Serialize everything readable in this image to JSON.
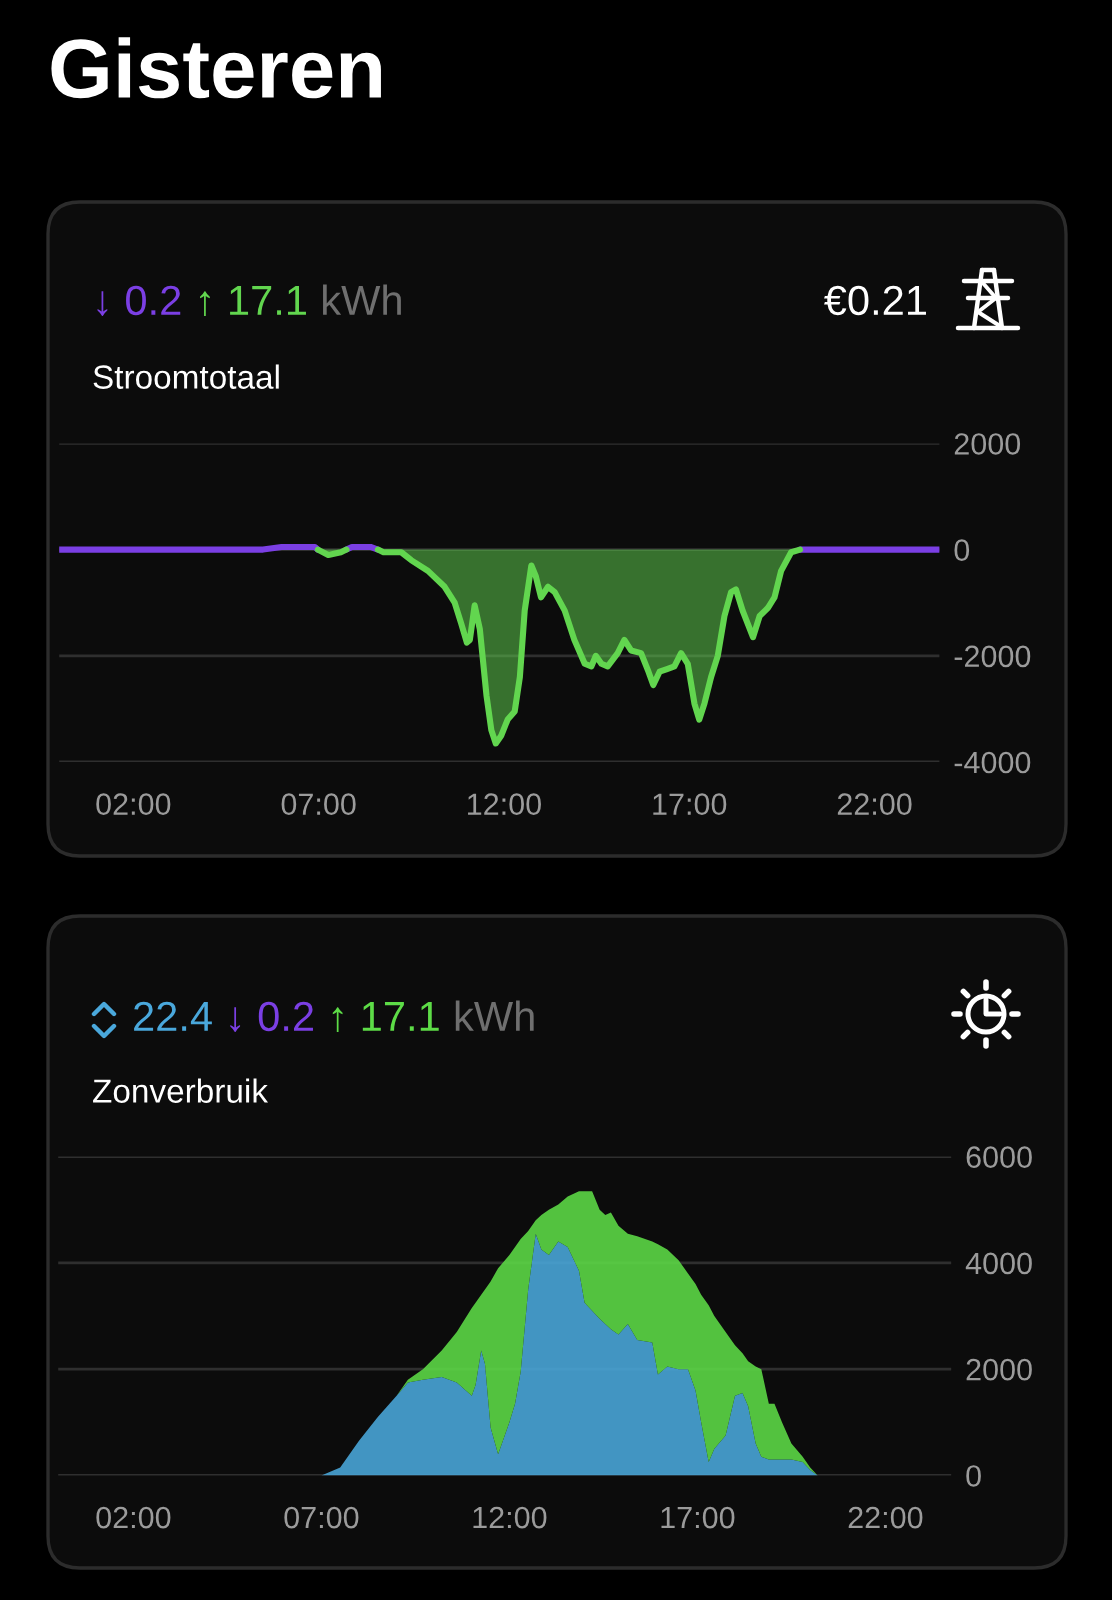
{
  "chart_data": [
    {
      "type": "area",
      "title": "Stroomtotaal",
      "annotations": [
        "Gisteren",
        "kWh",
        "€0.21"
      ],
      "xlim": [
        0,
        23.75
      ],
      "xticks": [
        {
          "value": 2,
          "label": "02:00"
        },
        {
          "value": 7,
          "label": "07:00"
        },
        {
          "value": 12,
          "label": "12:00"
        },
        {
          "value": 17,
          "label": "17:00"
        },
        {
          "value": 22,
          "label": "22:00"
        }
      ],
      "ylim": [
        -4000,
        2000
      ],
      "yticks": [
        -4000,
        -2000,
        0,
        2000
      ],
      "grid": "y",
      "legend": "top left",
      "series": [
        {
          "name": "↓ 0.2",
          "color": "#7b3fe4",
          "type": "line",
          "x": [
            0,
            2,
            4,
            5.5,
            6.0,
            6.9,
            6.98,
            7.3,
            7.75,
            7.9,
            8.4,
            8.6,
            14,
            19.99,
            21,
            22,
            23.75
          ],
          "values": [
            0,
            0,
            0,
            0,
            50,
            50,
            0,
            null,
            0,
            50,
            50,
            0,
            null,
            0,
            0,
            0,
            0
          ]
        },
        {
          "name": "↑ 17.1",
          "color": "#62d64f",
          "type": "area",
          "x": [
            6.98,
            7.26,
            7.6,
            7.75,
            8.2,
            8.6,
            8.75,
            9.23,
            9.5,
            9.95,
            10.4,
            10.67,
            10.85,
            11.0,
            11.08,
            11.21,
            11.35,
            11.53,
            11.66,
            11.78,
            11.93,
            12.1,
            12.29,
            12.43,
            12.56,
            12.74,
            12.86,
            13.0,
            13.19,
            13.37,
            13.64,
            13.9,
            14.18,
            14.36,
            14.48,
            14.63,
            14.8,
            15.07,
            15.25,
            15.43,
            15.7,
            15.9,
            16.03,
            16.2,
            16.4,
            16.6,
            16.78,
            16.96,
            17.14,
            17.27,
            17.41,
            17.59,
            17.77,
            17.95,
            18.13,
            18.26,
            18.44,
            18.72,
            18.9,
            19.12,
            19.3,
            19.48,
            19.75,
            19.99
          ],
          "values": [
            0,
            -100,
            -50,
            0,
            null,
            0,
            -50,
            -50,
            -200,
            -400,
            -700,
            -1000,
            -1400,
            -1750,
            -1700,
            -1050,
            -1500,
            -2750,
            -3400,
            -3650,
            -3500,
            -3200,
            -3050,
            -2400,
            -1150,
            -300,
            -500,
            -900,
            -700,
            -800,
            -1150,
            -1700,
            -2150,
            -2200,
            -2000,
            -2150,
            -2200,
            -1950,
            -1700,
            -1900,
            -1950,
            -2300,
            -2550,
            -2300,
            -2250,
            -2200,
            -1950,
            -2150,
            -2900,
            -3200,
            -2900,
            -2400,
            -2000,
            -1250,
            -800,
            -750,
            -1150,
            -1650,
            -1250,
            -1100,
            -900,
            -400,
            -50,
            0
          ]
        }
      ]
    },
    {
      "type": "area",
      "stacked": true,
      "title": "Zonverbruik",
      "annotations": [
        "↓ 0.2",
        "kWh"
      ],
      "x": [
        0,
        7.0,
        7.5,
        8.0,
        8.5,
        9.0,
        9.3,
        9.7,
        10.2,
        10.6,
        11.0,
        11.1,
        11.25,
        11.35,
        11.5,
        11.7,
        12.0,
        12.15,
        12.3,
        12.5,
        12.7,
        12.85,
        13.05,
        13.3,
        13.55,
        13.85,
        14.0,
        14.2,
        14.4,
        14.55,
        14.7,
        14.9,
        15.15,
        15.4,
        15.8,
        15.95,
        16.2,
        16.5,
        16.75,
        16.95,
        17.1,
        17.3,
        17.45,
        17.75,
        18.0,
        18.2,
        18.35,
        18.55,
        18.7,
        18.9,
        19.05,
        19.25,
        19.5,
        19.8,
        20.0,
        20.2,
        23.75
      ],
      "xlim": [
        0,
        23.75
      ],
      "xticks": [
        {
          "value": 2,
          "label": "02:00"
        },
        {
          "value": 7,
          "label": "07:00"
        },
        {
          "value": 12,
          "label": "12:00"
        },
        {
          "value": 17,
          "label": "17:00"
        },
        {
          "value": 22,
          "label": "22:00"
        }
      ],
      "ylim": [
        0,
        6000
      ],
      "yticks": [
        0,
        2000,
        4000,
        6000
      ],
      "grid": "y",
      "legend": "top left",
      "series": [
        {
          "name": "22.4",
          "color": "#4aa8dc",
          "values": [
            0,
            0,
            150,
            650,
            1100,
            1500,
            1750,
            1800,
            1850,
            1750,
            1500,
            1700,
            2350,
            2100,
            900,
            400,
            1000,
            1350,
            1950,
            3500,
            4550,
            4250,
            4150,
            4400,
            4300,
            3850,
            3250,
            3100,
            2950,
            2850,
            2750,
            2650,
            2850,
            2550,
            2500,
            1900,
            2050,
            2000,
            2000,
            1600,
            1000,
            250,
            500,
            750,
            1500,
            1550,
            1300,
            600,
            350,
            300,
            300,
            300,
            300,
            250,
            100,
            0,
            0
          ]
        },
        {
          "name": "↑ 17.1",
          "color": "#5ddc47",
          "values": [
            0,
            0,
            0,
            0,
            0,
            0,
            50,
            200,
            500,
            950,
            1650,
            1550,
            1050,
            1400,
            2750,
            3500,
            3150,
            2950,
            2500,
            1100,
            250,
            650,
            850,
            700,
            950,
            1500,
            2100,
            2250,
            2050,
            2050,
            2200,
            2050,
            1700,
            1950,
            1900,
            2450,
            2200,
            2050,
            1800,
            2000,
            2400,
            2950,
            2500,
            1950,
            950,
            750,
            850,
            1450,
            1650,
            1050,
            1050,
            700,
            300,
            100,
            50,
            0,
            0
          ]
        }
      ]
    }
  ]
}
